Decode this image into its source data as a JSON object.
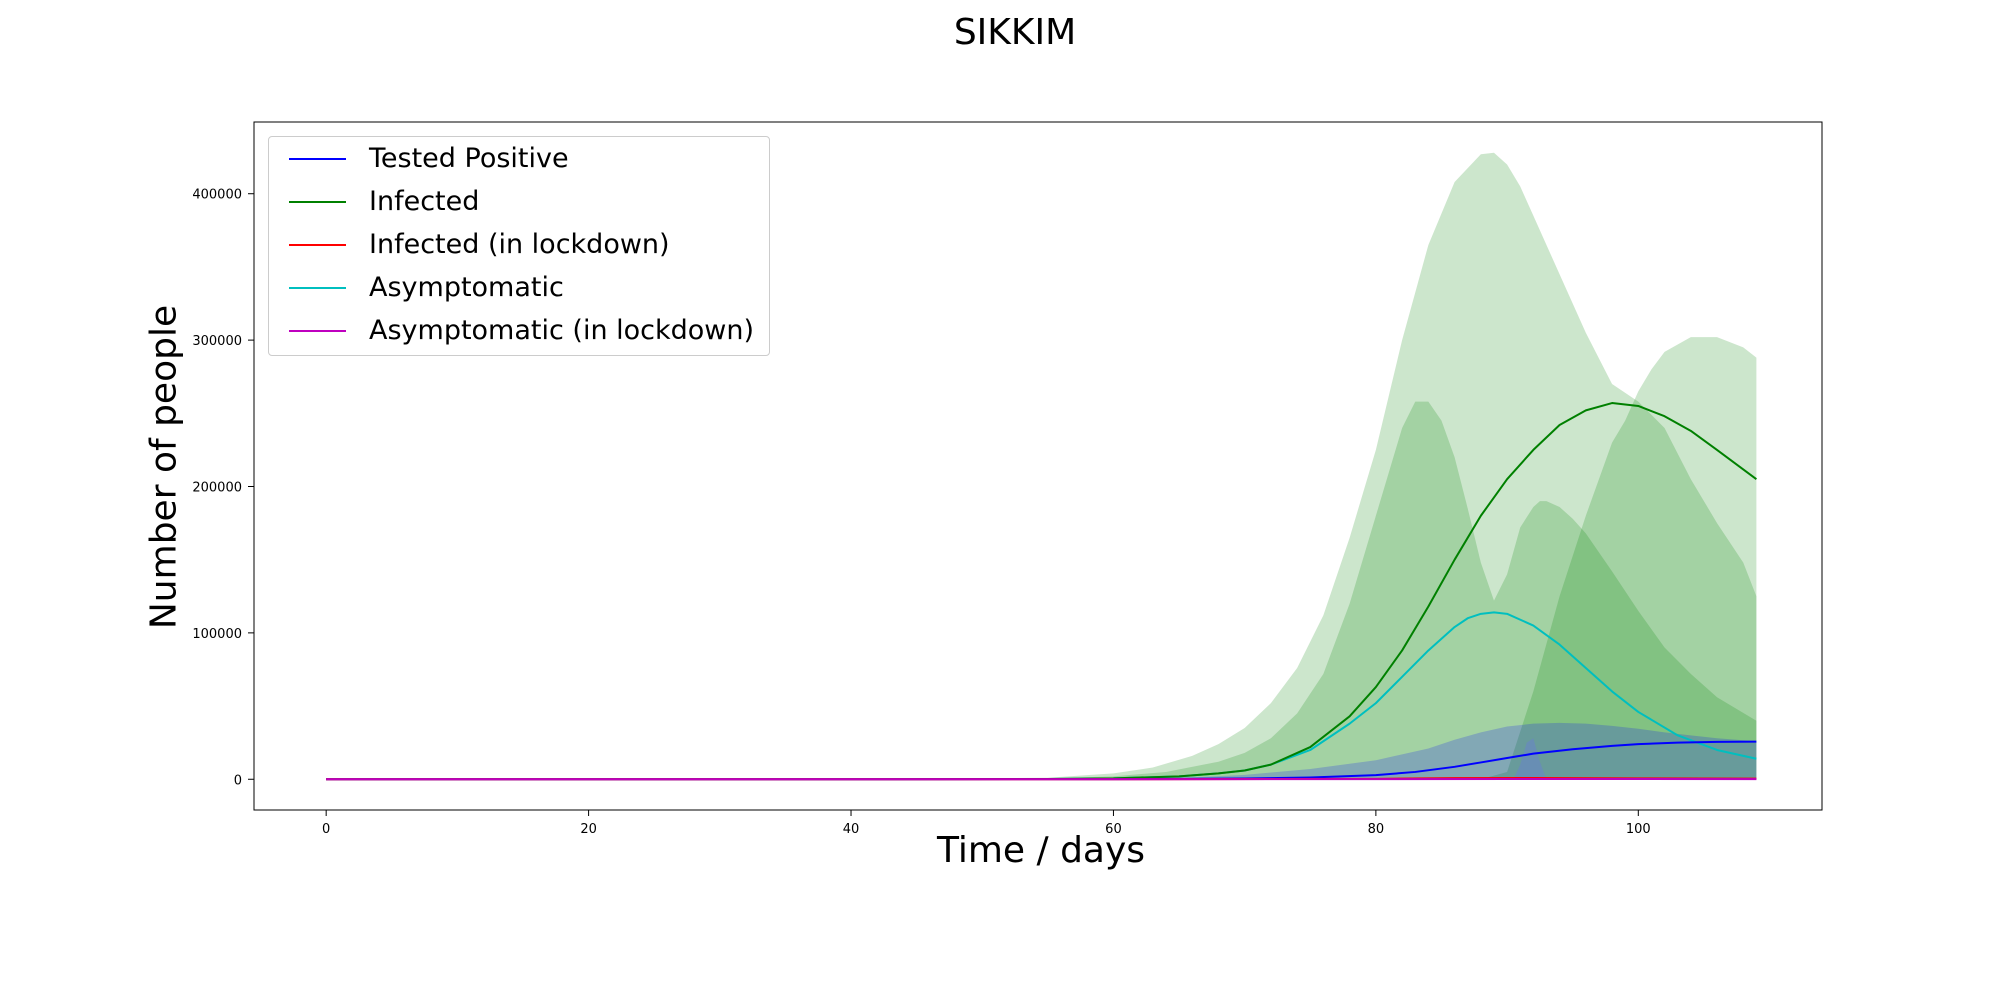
{
  "chart_data": {
    "type": "line",
    "title": "SIKKIM",
    "xlabel": "Time / days",
    "ylabel": "Number of people",
    "xlim": [
      -5.5,
      114
    ],
    "ylim": [
      -21000,
      449000
    ],
    "xticks": [
      0,
      20,
      40,
      60,
      80,
      100
    ],
    "yticks": [
      0,
      100000,
      200000,
      300000,
      400000
    ],
    "grid": false,
    "legend_position": "top-left",
    "series": [
      {
        "name": "Tested Positive",
        "color": "#0000ff",
        "x": [
          0,
          20,
          40,
          60,
          70,
          75,
          80,
          83,
          86,
          88,
          90,
          92,
          95,
          98,
          100,
          103,
          106,
          109
        ],
        "y": [
          0,
          0,
          0,
          100,
          500,
          1200,
          2800,
          5000,
          8500,
          11500,
          14500,
          17500,
          20500,
          22800,
          24000,
          25000,
          25500,
          25700
        ]
      },
      {
        "name": "Infected",
        "color": "#008000",
        "x": [
          0,
          20,
          40,
          55,
          60,
          65,
          68,
          70,
          72,
          75,
          78,
          80,
          82,
          84,
          86,
          88,
          90,
          92,
          94,
          96,
          98,
          100,
          102,
          104,
          106,
          109
        ],
        "y": [
          0,
          0,
          0,
          200,
          600,
          2000,
          4000,
          6000,
          10000,
          22000,
          43000,
          63000,
          88000,
          118000,
          150000,
          180000,
          205000,
          225000,
          242000,
          252000,
          257000,
          255000,
          248000,
          238000,
          225000,
          205000
        ]
      },
      {
        "name": "Infected (in lockdown)",
        "color": "#ff0000",
        "x": [
          0,
          20,
          40,
          60,
          80,
          86,
          92,
          100,
          109
        ],
        "y": [
          0,
          0,
          0,
          0,
          300,
          800,
          900,
          600,
          400
        ]
      },
      {
        "name": "Asymptomatic",
        "color": "#00bfbf",
        "x": [
          0,
          20,
          40,
          55,
          60,
          65,
          68,
          70,
          72,
          75,
          78,
          80,
          82,
          84,
          86,
          87,
          88,
          89,
          90,
          92,
          94,
          96,
          98,
          100,
          103,
          106,
          109
        ],
        "y": [
          0,
          0,
          0,
          200,
          600,
          2000,
          4000,
          6000,
          10000,
          20000,
          38000,
          52000,
          70000,
          88000,
          104000,
          110000,
          113000,
          114000,
          113000,
          105000,
          92000,
          76000,
          60000,
          46000,
          30000,
          20000,
          14000
        ]
      },
      {
        "name": "Asymptomatic (in lockdown)",
        "color": "#bf00bf",
        "x": [
          0,
          20,
          40,
          60,
          80,
          90,
          100,
          109
        ],
        "y": [
          0,
          0,
          0,
          0,
          100,
          200,
          150,
          100
        ]
      }
    ],
    "bands": [
      {
        "color": "#008000",
        "opacity": 0.2,
        "x": [
          0,
          40,
          55,
          60,
          63,
          66,
          68,
          70,
          72,
          74,
          76,
          78,
          80,
          82,
          84,
          86,
          88,
          89,
          90,
          91,
          92,
          94,
          96,
          98,
          100,
          102,
          104,
          106,
          108,
          109
        ],
        "upper": [
          0,
          0,
          1000,
          4000,
          8000,
          16000,
          24000,
          35000,
          52000,
          76000,
          112000,
          165000,
          225000,
          300000,
          365000,
          408000,
          427000,
          428000,
          420000,
          405000,
          385000,
          345000,
          305000,
          270000,
          258000,
          240000,
          205000,
          175000,
          148000,
          125000
        ],
        "lower": [
          0,
          0,
          0,
          0,
          0,
          0,
          0,
          0,
          0,
          0,
          0,
          0,
          0,
          0,
          0,
          0,
          0,
          0,
          0,
          0,
          0,
          0,
          0,
          0,
          0,
          0,
          0,
          0,
          0,
          0
        ]
      },
      {
        "color": "#008000",
        "opacity": 0.2,
        "x": [
          88,
          90,
          92,
          94,
          96,
          98,
          99,
          100,
          101,
          102,
          104,
          106,
          108,
          109
        ],
        "upper": [
          0,
          5000,
          60000,
          125000,
          180000,
          230000,
          245000,
          265000,
          280000,
          292000,
          302000,
          302000,
          295000,
          288000
        ],
        "lower": [
          0,
          0,
          0,
          0,
          0,
          0,
          0,
          0,
          0,
          0,
          0,
          0,
          0,
          0
        ]
      },
      {
        "color": "#008000",
        "opacity": 0.2,
        "x": [
          0,
          40,
          55,
          60,
          64,
          68,
          70,
          72,
          74,
          76,
          78,
          80,
          82,
          83,
          84,
          85,
          86,
          87,
          88,
          89,
          90,
          91,
          92,
          92.5,
          93,
          94,
          95,
          96,
          98,
          100,
          102,
          104,
          106,
          109
        ],
        "upper": [
          0,
          0,
          500,
          2000,
          5000,
          12000,
          18000,
          28000,
          45000,
          72000,
          120000,
          180000,
          240000,
          258000,
          258000,
          245000,
          220000,
          185000,
          148000,
          122000,
          140000,
          172000,
          186000,
          190000,
          190000,
          186000,
          178000,
          168000,
          142000,
          115000,
          90000,
          72000,
          56000,
          40000
        ],
        "lower": [
          0,
          0,
          0,
          0,
          0,
          0,
          0,
          0,
          0,
          0,
          0,
          0,
          0,
          0,
          0,
          0,
          0,
          0,
          0,
          0,
          0,
          0,
          0,
          0,
          0,
          0,
          0,
          0,
          0,
          0,
          0,
          0,
          0,
          0
        ]
      },
      {
        "color": "#0000ff",
        "opacity": 0.2,
        "x": [
          0,
          40,
          60,
          65,
          70,
          75,
          80,
          84,
          86,
          88,
          90,
          92,
          94,
          96,
          98,
          100,
          102,
          104,
          106,
          109
        ],
        "upper": [
          0,
          0,
          200,
          800,
          3000,
          7000,
          13000,
          21000,
          27000,
          32000,
          36000,
          38000,
          38500,
          38000,
          36500,
          34500,
          32000,
          30000,
          28000,
          26000
        ],
        "lower": [
          0,
          0,
          0,
          0,
          0,
          0,
          0,
          0,
          0,
          0,
          0,
          0,
          0,
          0,
          0,
          0,
          0,
          0,
          0,
          0
        ]
      },
      {
        "color": "#6666ff",
        "opacity": 0.25,
        "x": [
          90.5,
          91,
          91.5,
          92,
          92.5,
          93
        ],
        "upper": [
          0,
          10000,
          25000,
          28000,
          12000,
          0
        ],
        "lower": [
          0,
          0,
          0,
          0,
          0,
          0
        ]
      }
    ]
  }
}
